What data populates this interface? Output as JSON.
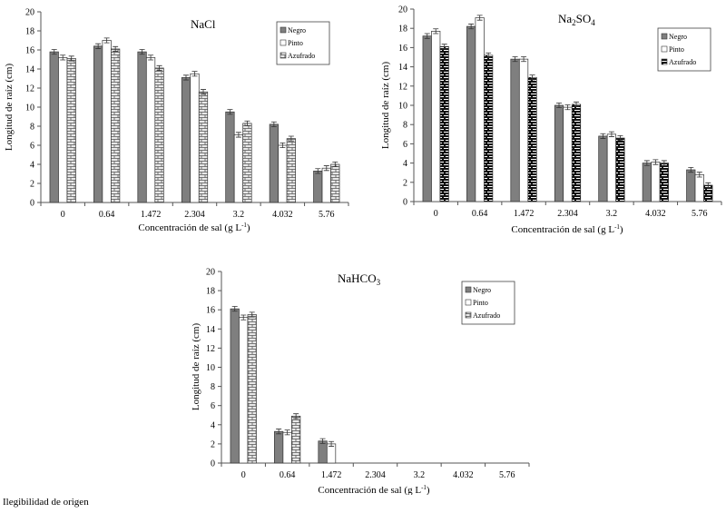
{
  "footnote": "Ilegibilidad de origen",
  "colors": {
    "negro": "#7f7f7f",
    "pinto": "#ffffff",
    "azufrado_nacl": "#d9d9d9",
    "azufrado_na2so4": "#000000"
  },
  "chart_data": [
    {
      "type": "bar",
      "title": "NaCl",
      "title_base": "NaCl",
      "title_sub": "",
      "title_tail": "",
      "xlabel": "Concentración de sal (g L",
      "xlabel_sup": "-1",
      "xlabel_tail": ")",
      "ylabel": "Longitud de raíz (cm)",
      "ylim": [
        0,
        20
      ],
      "yticks": [
        "0",
        "2",
        "4",
        "6",
        "8",
        "10",
        "12",
        "14",
        "16",
        "18",
        "20"
      ],
      "categories": [
        "0",
        "0.64",
        "1.472",
        "2.304",
        "3.2",
        "4.032",
        "5.76"
      ],
      "legend": [
        "Negro",
        "Pinto",
        "Azufrado"
      ],
      "pattern": "brick-light",
      "series": [
        {
          "name": "Negro",
          "values": [
            15.8,
            16.4,
            15.8,
            13.1,
            9.5,
            8.2,
            3.3
          ]
        },
        {
          "name": "Pinto",
          "values": [
            15.2,
            17.0,
            15.2,
            13.5,
            7.1,
            6.0,
            3.6
          ]
        },
        {
          "name": "Azufrado",
          "values": [
            15.1,
            16.1,
            14.1,
            11.6,
            8.3,
            6.7,
            4.0
          ]
        }
      ]
    },
    {
      "type": "bar",
      "title": "Na2SO4",
      "title_base": "Na",
      "title_sub": "2",
      "title_tail": "SO",
      "title_sub2": "4",
      "xlabel": "Concentración de sal (g L",
      "xlabel_sup": "-1",
      "xlabel_tail": ")",
      "ylabel": "Longitud de raíz (cm)",
      "ylim": [
        0,
        20
      ],
      "yticks": [
        "0",
        "2",
        "4",
        "6",
        "8",
        "10",
        "12",
        "14",
        "16",
        "18",
        "20"
      ],
      "categories": [
        "0",
        "0.64",
        "1.472",
        "2.304",
        "3.2",
        "4.032",
        "5.76"
      ],
      "legend": [
        "Negro",
        "Pinto",
        "Azufrado"
      ],
      "pattern": "brick-dark",
      "series": [
        {
          "name": "Negro",
          "values": [
            17.2,
            18.2,
            14.8,
            10.0,
            6.8,
            4.0,
            3.3
          ]
        },
        {
          "name": "Pinto",
          "values": [
            17.7,
            19.1,
            14.8,
            9.8,
            7.0,
            4.1,
            2.8
          ]
        },
        {
          "name": "Azufrado",
          "values": [
            16.1,
            15.2,
            12.9,
            10.1,
            6.6,
            4.0,
            1.7
          ]
        }
      ]
    },
    {
      "type": "bar",
      "title": "NaHCO3",
      "title_base": "NaHCO",
      "title_sub": "3",
      "title_tail": "",
      "xlabel": "Concentración de sal (g L",
      "xlabel_sup": "-1",
      "xlabel_tail": ")",
      "ylabel": "Longitud de raíz (cm)",
      "ylim": [
        0,
        20
      ],
      "yticks": [
        "0",
        "2",
        "4",
        "6",
        "8",
        "10",
        "12",
        "14",
        "16",
        "18",
        "20"
      ],
      "categories": [
        "0",
        "0.64",
        "1.472",
        "2.304",
        "3.2",
        "4.032",
        "5.76"
      ],
      "legend": [
        "Negro",
        "Pinto",
        "Azufrado"
      ],
      "pattern": "brick-light",
      "series": [
        {
          "name": "Negro",
          "values": [
            16.1,
            3.3,
            2.3,
            0,
            0,
            0,
            0
          ]
        },
        {
          "name": "Pinto",
          "values": [
            15.2,
            3.2,
            2.0,
            0,
            0,
            0,
            0
          ]
        },
        {
          "name": "Azufrado",
          "values": [
            15.5,
            4.9,
            0,
            0,
            0,
            0,
            0
          ]
        }
      ]
    }
  ]
}
